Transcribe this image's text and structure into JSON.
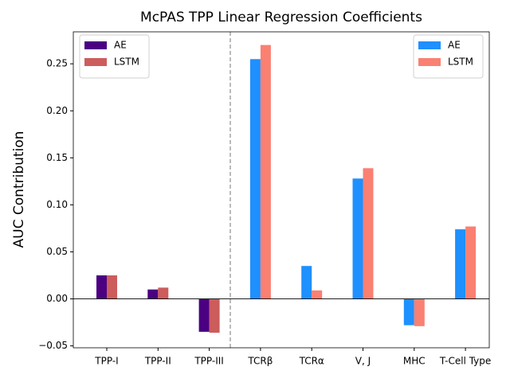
{
  "chart_data": {
    "type": "bar",
    "title": "McPAS TPP Linear Regression Coefficients",
    "ylabel": "AUC Contribution",
    "categories": [
      "TPP-I",
      "TPP-II",
      "TPP-III",
      "TCRβ",
      "TCRα",
      "V, J",
      "MHC",
      "T-Cell Type"
    ],
    "series": [
      {
        "name": "AE",
        "color": "#4b0082",
        "legend_loc": "upper left",
        "values": [
          0.025,
          0.01,
          -0.035,
          null,
          null,
          null,
          null,
          null
        ]
      },
      {
        "name": "LSTM",
        "color": "#cd5c5c",
        "legend_loc": "upper left",
        "values": [
          0.025,
          0.012,
          -0.036,
          null,
          null,
          null,
          null,
          null
        ]
      },
      {
        "name": "AE",
        "color": "#1e90ff",
        "legend_loc": "upper right",
        "values": [
          null,
          null,
          null,
          0.255,
          0.035,
          0.128,
          -0.028,
          0.074
        ]
      },
      {
        "name": "LSTM",
        "color": "#fa8072",
        "legend_loc": "upper right",
        "values": [
          null,
          null,
          null,
          0.27,
          0.009,
          0.139,
          -0.029,
          0.077
        ]
      }
    ],
    "ylim": [
      -0.052,
      0.284
    ],
    "yticks": [
      {
        "value": -0.05,
        "label": "−0.05"
      },
      {
        "value": 0,
        "label": "0.00"
      },
      0.05,
      {
        "value": 0.1,
        "label": "0.10"
      },
      0.15,
      {
        "value": 0.2,
        "label": "0.20"
      },
      0.25
    ],
    "grid": false
  }
}
